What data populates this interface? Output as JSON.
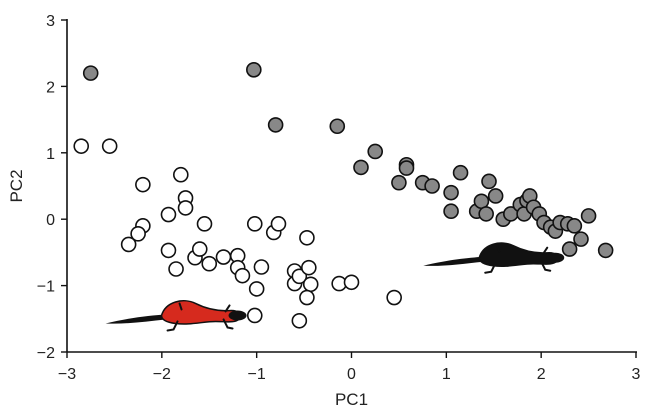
{
  "chart_data": {
    "type": "scatter",
    "xlabel": "PC1",
    "ylabel": "PC2",
    "xlim": [
      -3,
      3
    ],
    "ylim": [
      -2,
      3
    ],
    "x_ticks": [
      "−3",
      "−2",
      "−1",
      "0",
      "1",
      "2",
      "3"
    ],
    "y_ticks": [
      "−2",
      "−1",
      "0",
      "1",
      "2",
      "3"
    ],
    "grid": false,
    "legend": "none",
    "series": [
      {
        "style": "open-circle",
        "fill": "#ffffff",
        "stroke": "#111111",
        "points": [
          [
            -2.85,
            1.1
          ],
          [
            -2.55,
            1.1
          ],
          [
            -2.2,
            0.52
          ],
          [
            -2.2,
            -0.1
          ],
          [
            -2.25,
            -0.22
          ],
          [
            -2.35,
            -0.38
          ],
          [
            -1.93,
            0.07
          ],
          [
            -1.93,
            -0.47
          ],
          [
            -1.85,
            -0.75
          ],
          [
            -1.8,
            0.67
          ],
          [
            -1.75,
            0.32
          ],
          [
            -1.75,
            0.17
          ],
          [
            -1.65,
            -0.58
          ],
          [
            -1.6,
            -0.45
          ],
          [
            -1.55,
            -0.07
          ],
          [
            -1.5,
            -0.67
          ],
          [
            -1.35,
            -0.57
          ],
          [
            -1.2,
            -0.55
          ],
          [
            -1.2,
            -0.73
          ],
          [
            -1.15,
            -0.85
          ],
          [
            -1.02,
            -0.07
          ],
          [
            -1.0,
            -1.05
          ],
          [
            -1.02,
            -1.45
          ],
          [
            -0.95,
            -0.72
          ],
          [
            -0.82,
            -0.2
          ],
          [
            -0.77,
            -0.07
          ],
          [
            -0.6,
            -0.78
          ],
          [
            -0.6,
            -0.97
          ],
          [
            -0.55,
            -0.86
          ],
          [
            -0.47,
            -0.28
          ],
          [
            -0.45,
            -0.73
          ],
          [
            -0.43,
            -0.98
          ],
          [
            -0.47,
            -1.18
          ],
          [
            -0.55,
            -1.53
          ],
          [
            -0.13,
            -0.97
          ],
          [
            0.0,
            -0.95
          ],
          [
            0.45,
            -1.18
          ]
        ]
      },
      {
        "style": "filled-circle",
        "fill": "#888888",
        "stroke": "#111111",
        "points": [
          [
            -2.75,
            2.2
          ],
          [
            -1.03,
            2.25
          ],
          [
            -0.8,
            1.42
          ],
          [
            -0.15,
            1.4
          ],
          [
            0.1,
            0.78
          ],
          [
            0.25,
            1.02
          ],
          [
            0.5,
            0.55
          ],
          [
            0.58,
            0.82
          ],
          [
            0.58,
            0.77
          ],
          [
            0.75,
            0.55
          ],
          [
            0.85,
            0.5
          ],
          [
            1.05,
            0.4
          ],
          [
            1.05,
            0.12
          ],
          [
            1.15,
            0.7
          ],
          [
            1.32,
            0.12
          ],
          [
            1.37,
            0.27
          ],
          [
            1.42,
            0.08
          ],
          [
            1.45,
            0.57
          ],
          [
            1.52,
            0.35
          ],
          [
            1.6,
            0.0
          ],
          [
            1.68,
            0.08
          ],
          [
            1.78,
            0.22
          ],
          [
            1.82,
            0.08
          ],
          [
            1.85,
            0.28
          ],
          [
            1.88,
            0.35
          ],
          [
            1.92,
            0.18
          ],
          [
            1.98,
            0.08
          ],
          [
            2.03,
            -0.05
          ],
          [
            2.1,
            -0.12
          ],
          [
            2.15,
            -0.18
          ],
          [
            2.2,
            -0.05
          ],
          [
            2.28,
            -0.07
          ],
          [
            2.3,
            -0.45
          ],
          [
            2.35,
            -0.1
          ],
          [
            2.42,
            -0.3
          ],
          [
            2.5,
            0.05
          ],
          [
            2.68,
            -0.47
          ]
        ]
      }
    ],
    "icons": [
      {
        "name": "red-salamander-icon",
        "color": "#d62a1e",
        "at": [
          -1.75,
          -1.45
        ]
      },
      {
        "name": "black-salamander-icon",
        "color": "#111111",
        "at": [
          1.6,
          -0.58
        ]
      }
    ]
  }
}
